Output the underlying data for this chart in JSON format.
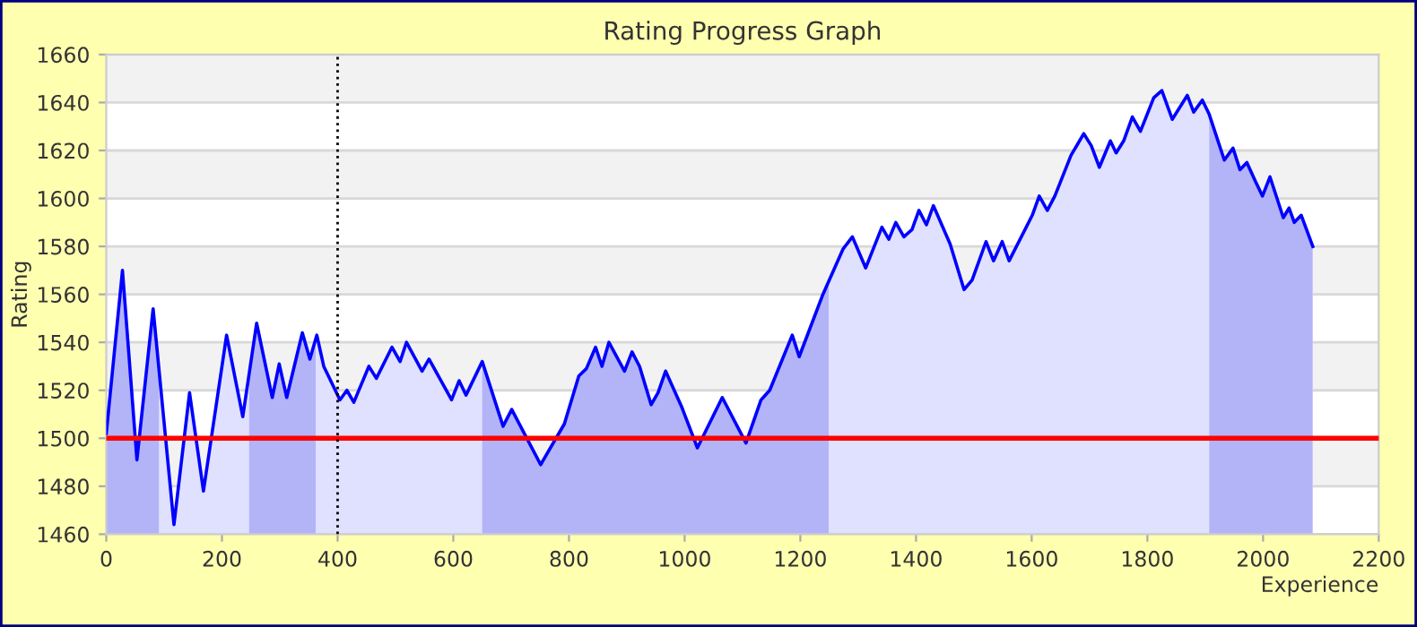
{
  "chart_data": {
    "type": "area",
    "title": "Rating Progress Graph",
    "xlabel": "Experience",
    "ylabel": "Rating",
    "xlim": [
      0,
      2200
    ],
    "xticks": [
      0,
      200,
      400,
      600,
      800,
      1000,
      1200,
      1400,
      1600,
      1800,
      2000,
      2200
    ],
    "ylim": [
      1460,
      1660
    ],
    "yticks": [
      1460,
      1480,
      1500,
      1520,
      1540,
      1560,
      1580,
      1600,
      1620,
      1640,
      1660
    ],
    "grid": "y",
    "legend": false,
    "marker": "none",
    "line_style": "solid",
    "series": [
      {
        "color": "#0000ff",
        "x": [
          0,
          28,
          53,
          81,
          117,
          144,
          168,
          208,
          236,
          260,
          287,
          299,
          312,
          339,
          352,
          364,
          376,
          404,
          416,
          428,
          454,
          467,
          494,
          508,
          519,
          546,
          558,
          597,
          610,
          622,
          650,
          686,
          701,
          751,
          792,
          817,
          830,
          846,
          857,
          869,
          896,
          909,
          922,
          942,
          954,
          967,
          995,
          1022,
          1065,
          1106,
          1132,
          1147,
          1186,
          1198,
          1239,
          1274,
          1290,
          1313,
          1341,
          1353,
          1365,
          1379,
          1393,
          1405,
          1418,
          1430,
          1459,
          1483,
          1497,
          1521,
          1534,
          1549,
          1561,
          1601,
          1613,
          1627,
          1640,
          1668,
          1690,
          1703,
          1717,
          1736,
          1746,
          1759,
          1774,
          1788,
          1811,
          1825,
          1843,
          1869,
          1880,
          1895,
          1907,
          1933,
          1948,
          1960,
          1972,
          1987,
          1999,
          2012,
          2035,
          2045,
          2054,
          2066,
          2086
        ],
        "values": [
          1502,
          1570,
          1491,
          1554,
          1464,
          1519,
          1478,
          1543,
          1509,
          1548,
          1517,
          1531,
          1517,
          1544,
          1533,
          1543,
          1530,
          1516,
          1520,
          1515,
          1530,
          1525,
          1538,
          1532,
          1540,
          1528,
          1533,
          1516,
          1524,
          1518,
          1532,
          1505,
          1512,
          1489,
          1506,
          1526,
          1529,
          1538,
          1530,
          1540,
          1528,
          1536,
          1530,
          1514,
          1519,
          1528,
          1513,
          1496,
          1517,
          1498,
          1516,
          1520,
          1543,
          1534,
          1560,
          1579,
          1584,
          1571,
          1588,
          1583,
          1590,
          1584,
          1587,
          1595,
          1589,
          1597,
          1581,
          1562,
          1566,
          1582,
          1574,
          1582,
          1574,
          1593,
          1601,
          1595,
          1601,
          1618,
          1627,
          1622,
          1613,
          1624,
          1619,
          1624,
          1634,
          1628,
          1642,
          1645,
          1633,
          1643,
          1636,
          1641,
          1635,
          1616,
          1621,
          1612,
          1615,
          1607,
          1601,
          1609,
          1592,
          1596,
          1590,
          1593,
          1580
        ]
      }
    ],
    "ref_lines": [
      {
        "axis": "y",
        "value": 1500,
        "color": "#ff0000",
        "line_style": "solid"
      },
      {
        "axis": "x",
        "value": 400,
        "color": "#000000",
        "line_style": "dotted"
      }
    ],
    "bands": [
      {
        "axis": "x",
        "from": 0,
        "to": 91,
        "color": "#ccccf8"
      },
      {
        "axis": "x",
        "from": 247,
        "to": 362,
        "color": "#ccccf8"
      },
      {
        "axis": "x",
        "from": 650,
        "to": 1249,
        "color": "#ccccf8"
      },
      {
        "axis": "x",
        "from": 1907,
        "to": 2086,
        "color": "#ccccf8"
      }
    ]
  }
}
